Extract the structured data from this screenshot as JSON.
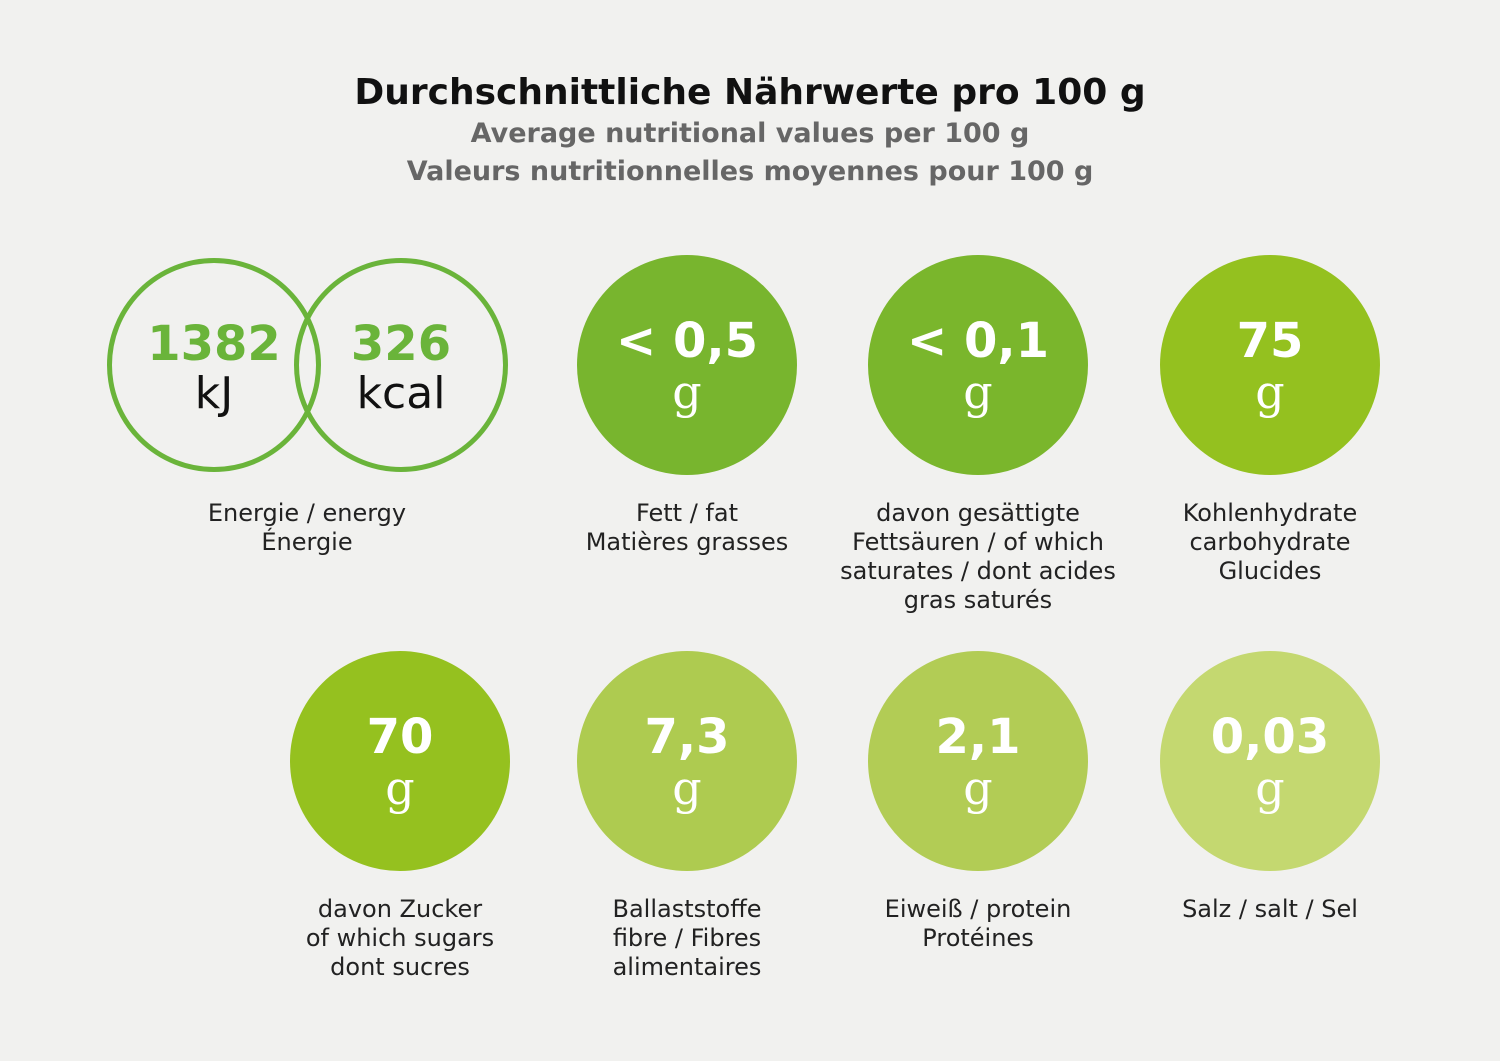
{
  "title": "Durchschnittliche Nährwerte pro 100 g",
  "subtitle_en": "Average nutritional values per 100 g",
  "subtitle_fr": "Valeurs nutritionnelles moyennes pour 100 g",
  "energy": {
    "kj_value": "1382",
    "kj_unit": "kJ",
    "kcal_value": "326",
    "kcal_unit": "kcal",
    "label": [
      "Energie / energy",
      "Énergie"
    ],
    "color": "#6ab43a"
  },
  "nutrients": [
    {
      "value": "< 0,5",
      "unit": "g",
      "label": [
        "Fett / fat",
        "Matières grasses"
      ],
      "color": "#78b52e"
    },
    {
      "value": "< 0,1",
      "unit": "g",
      "label": [
        "davon gesättigte",
        "Fettsäuren / of which",
        "saturates / dont acides",
        "gras saturés"
      ],
      "color": "#7ab62c"
    },
    {
      "value": "75",
      "unit": "g",
      "label": [
        "Kohlenhydrate",
        "carbohydrate",
        "Glucides"
      ],
      "color": "#94c11f"
    },
    {
      "value": "70",
      "unit": "g",
      "label": [
        "davon Zucker",
        "of which sugars",
        "dont sucres"
      ],
      "color": "#95c11f"
    },
    {
      "value": "7,3",
      "unit": "g",
      "label": [
        "Ballaststoffe",
        "fibre / Fibres",
        "alimentaires"
      ],
      "color": "#aecb50"
    },
    {
      "value": "2,1",
      "unit": "g",
      "label": [
        "Eiweiß / protein",
        "Protéines"
      ],
      "color": "#b2cc55"
    },
    {
      "value": "0,03",
      "unit": "g",
      "label": [
        "Salz / salt / Sel"
      ],
      "color": "#c4d870"
    }
  ]
}
